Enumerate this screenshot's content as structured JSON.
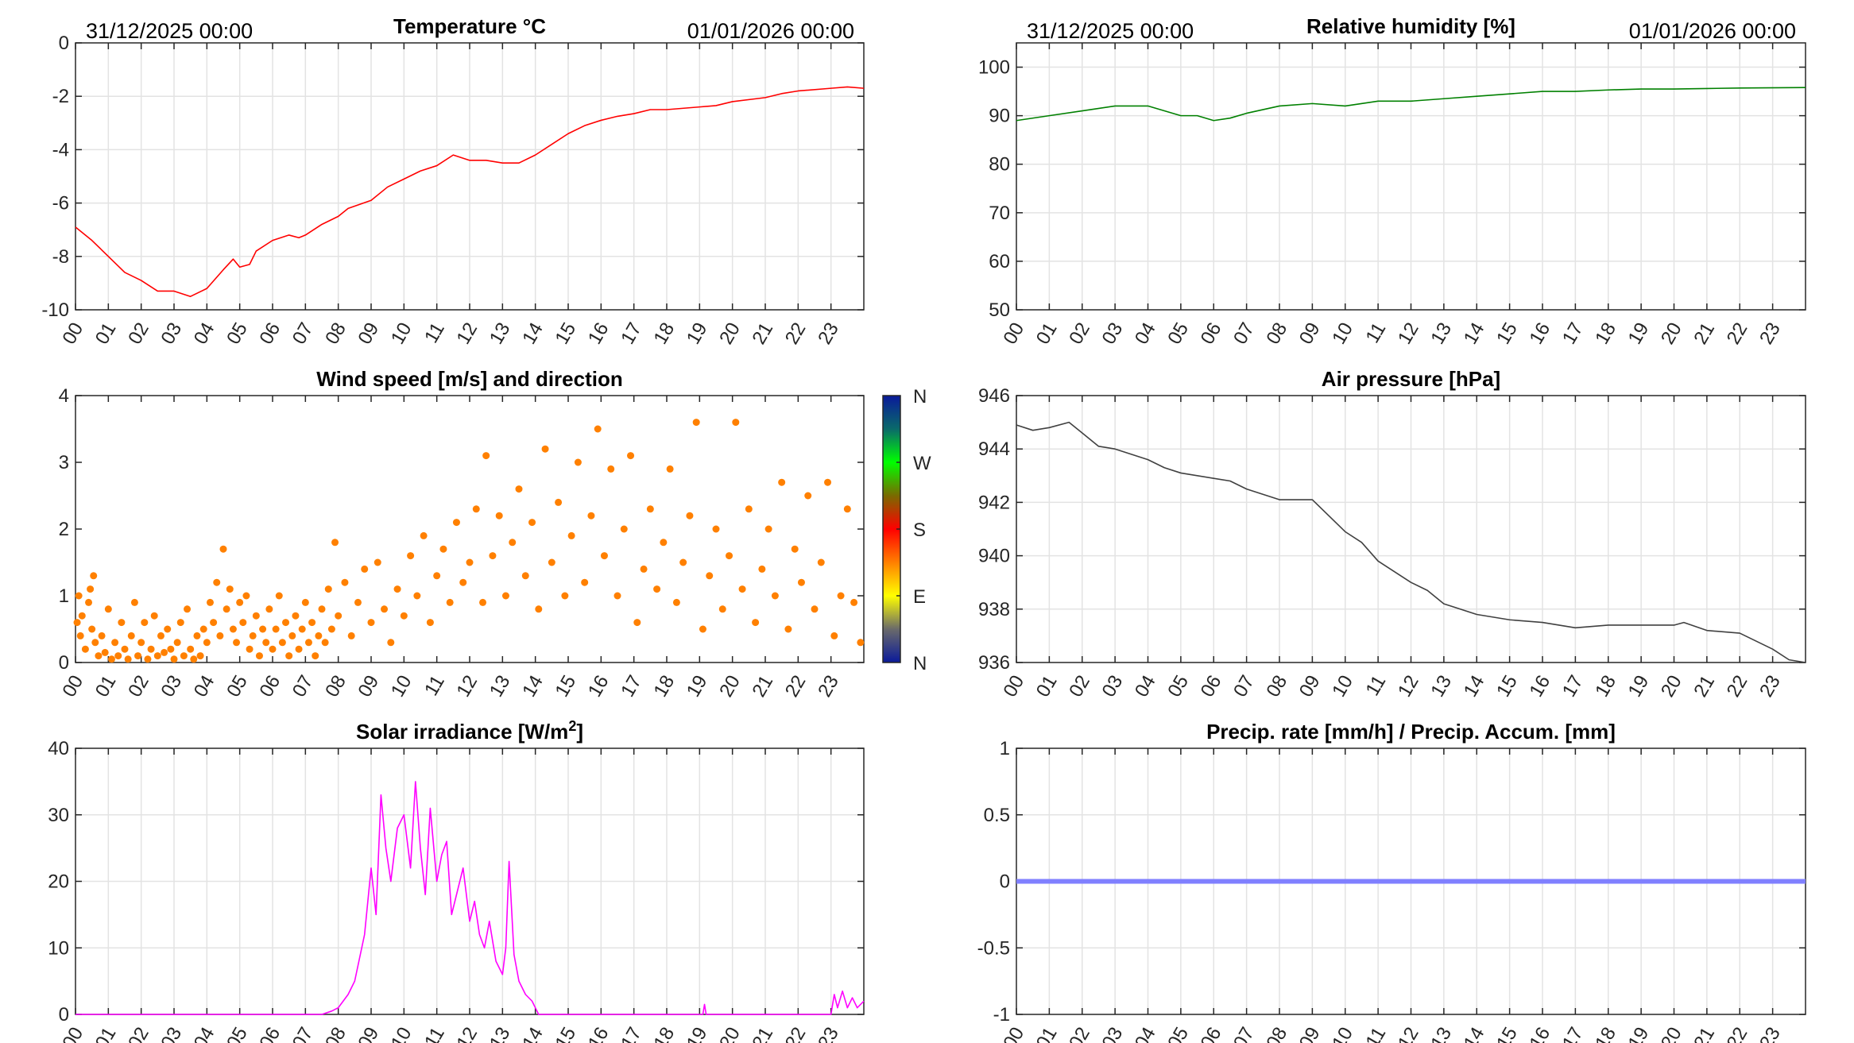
{
  "header": {
    "start_label": "31/12/2025 00:00",
    "end_label": "01/01/2026 00:00"
  },
  "hour_labels": [
    "00",
    "01",
    "02",
    "03",
    "04",
    "05",
    "06",
    "07",
    "08",
    "09",
    "10",
    "11",
    "12",
    "13",
    "14",
    "15",
    "16",
    "17",
    "18",
    "19",
    "20",
    "21",
    "22",
    "23"
  ],
  "colorbar": {
    "labels": [
      "N",
      "W",
      "S",
      "E",
      "N"
    ],
    "colors": [
      "#0a1a9a",
      "#0a6a6a",
      "#00ff00",
      "#7a6a00",
      "#ff0000",
      "#ff8000",
      "#ffff00",
      "#6a6a6a",
      "#0a1a9a"
    ]
  },
  "chart_data": [
    {
      "id": "temp",
      "type": "line",
      "title": "Temperature °C",
      "xlabel": "",
      "ylabel": "",
      "xlim": [
        0,
        24
      ],
      "ylim": [
        -10,
        0
      ],
      "yticks": [
        0,
        -2,
        -4,
        -6,
        -8,
        -10
      ],
      "grid": true,
      "color": "#ff0000",
      "x": [
        0,
        0.5,
        1,
        1.5,
        2,
        2.5,
        3,
        3.5,
        4,
        4.5,
        4.8,
        5,
        5.3,
        5.5,
        6,
        6.5,
        6.8,
        7,
        7.5,
        8,
        8.3,
        9,
        9.5,
        10,
        10.5,
        11,
        11.5,
        12,
        12.5,
        13,
        13.5,
        14,
        14.5,
        15,
        15.5,
        16,
        16.5,
        17,
        17.5,
        18,
        19,
        19.5,
        20,
        21,
        21.5,
        22,
        23,
        23.5,
        24
      ],
      "y": [
        -6.9,
        -7.4,
        -8.0,
        -8.6,
        -8.9,
        -9.3,
        -9.3,
        -9.5,
        -9.2,
        -8.5,
        -8.1,
        -8.4,
        -8.3,
        -7.8,
        -7.4,
        -7.2,
        -7.3,
        -7.2,
        -6.8,
        -6.5,
        -6.2,
        -5.9,
        -5.4,
        -5.1,
        -4.8,
        -4.6,
        -4.2,
        -4.4,
        -4.4,
        -4.5,
        -4.5,
        -4.2,
        -3.8,
        -3.4,
        -3.1,
        -2.9,
        -2.75,
        -2.65,
        -2.5,
        -2.5,
        -2.4,
        -2.35,
        -2.2,
        -2.05,
        -1.9,
        -1.8,
        -1.7,
        -1.65,
        -1.7
      ]
    },
    {
      "id": "hum",
      "type": "line",
      "title": "Relative humidity [%]",
      "xlabel": "",
      "ylabel": "",
      "xlim": [
        0,
        24
      ],
      "ylim": [
        50,
        105
      ],
      "yticks": [
        100,
        90,
        80,
        70,
        60,
        50
      ],
      "grid": true,
      "color": "#008000",
      "x": [
        0,
        1,
        2,
        3,
        4,
        4.5,
        5,
        5.5,
        6,
        6.5,
        7,
        8,
        9,
        10,
        11,
        12,
        13,
        14,
        15,
        16,
        17,
        18,
        19,
        20,
        21,
        22,
        24
      ],
      "y": [
        89,
        90,
        91,
        92,
        92,
        91,
        90,
        90,
        89,
        89.5,
        90.5,
        92,
        92.5,
        92,
        93,
        93,
        93.5,
        94,
        94.5,
        95,
        95,
        95.3,
        95.5,
        95.5,
        95.6,
        95.7,
        95.8
      ]
    },
    {
      "id": "wind",
      "type": "scatter",
      "title": "Wind speed [m/s] and direction",
      "xlabel": "",
      "ylabel": "",
      "xlim": [
        0,
        24
      ],
      "ylim": [
        0,
        4
      ],
      "yticks": [
        4,
        3,
        2,
        1,
        0
      ],
      "grid": false,
      "color": "#ff8000",
      "points": [
        [
          0.05,
          0.6
        ],
        [
          0.1,
          1.0
        ],
        [
          0.15,
          0.4
        ],
        [
          0.2,
          0.7
        ],
        [
          0.3,
          0.2
        ],
        [
          0.4,
          0.9
        ],
        [
          0.45,
          1.1
        ],
        [
          0.5,
          0.5
        ],
        [
          0.55,
          1.3
        ],
        [
          0.6,
          0.3
        ],
        [
          0.7,
          0.1
        ],
        [
          0.8,
          0.4
        ],
        [
          0.9,
          0.15
        ],
        [
          1.0,
          0.8
        ],
        [
          1.1,
          0.05
        ],
        [
          1.2,
          0.3
        ],
        [
          1.3,
          0.1
        ],
        [
          1.4,
          0.6
        ],
        [
          1.5,
          0.2
        ],
        [
          1.6,
          0.05
        ],
        [
          1.7,
          0.4
        ],
        [
          1.8,
          0.9
        ],
        [
          1.9,
          0.1
        ],
        [
          2.0,
          0.3
        ],
        [
          2.1,
          0.6
        ],
        [
          2.2,
          0.05
        ],
        [
          2.3,
          0.2
        ],
        [
          2.4,
          0.7
        ],
        [
          2.5,
          0.1
        ],
        [
          2.6,
          0.4
        ],
        [
          2.7,
          0.15
        ],
        [
          2.8,
          0.5
        ],
        [
          2.9,
          0.2
        ],
        [
          3.0,
          0.05
        ],
        [
          3.1,
          0.3
        ],
        [
          3.2,
          0.6
        ],
        [
          3.3,
          0.1
        ],
        [
          3.4,
          0.8
        ],
        [
          3.5,
          0.2
        ],
        [
          3.6,
          0.05
        ],
        [
          3.7,
          0.4
        ],
        [
          3.8,
          0.1
        ],
        [
          3.9,
          0.5
        ],
        [
          4.0,
          0.3
        ],
        [
          4.1,
          0.9
        ],
        [
          4.2,
          0.6
        ],
        [
          4.3,
          1.2
        ],
        [
          4.4,
          0.4
        ],
        [
          4.5,
          1.7
        ],
        [
          4.6,
          0.8
        ],
        [
          4.7,
          1.1
        ],
        [
          4.8,
          0.5
        ],
        [
          4.9,
          0.3
        ],
        [
          5.0,
          0.9
        ],
        [
          5.1,
          0.6
        ],
        [
          5.2,
          1.0
        ],
        [
          5.3,
          0.2
        ],
        [
          5.4,
          0.4
        ],
        [
          5.5,
          0.7
        ],
        [
          5.6,
          0.1
        ],
        [
          5.7,
          0.5
        ],
        [
          5.8,
          0.3
        ],
        [
          5.9,
          0.8
        ],
        [
          6.0,
          0.2
        ],
        [
          6.1,
          0.5
        ],
        [
          6.2,
          1.0
        ],
        [
          6.3,
          0.3
        ],
        [
          6.4,
          0.6
        ],
        [
          6.5,
          0.1
        ],
        [
          6.6,
          0.4
        ],
        [
          6.7,
          0.7
        ],
        [
          6.8,
          0.2
        ],
        [
          6.9,
          0.5
        ],
        [
          7.0,
          0.9
        ],
        [
          7.1,
          0.3
        ],
        [
          7.2,
          0.6
        ],
        [
          7.3,
          0.1
        ],
        [
          7.4,
          0.4
        ],
        [
          7.5,
          0.8
        ],
        [
          7.6,
          0.3
        ],
        [
          7.7,
          1.1
        ],
        [
          7.8,
          0.5
        ],
        [
          7.9,
          1.8
        ],
        [
          8.0,
          0.7
        ],
        [
          8.2,
          1.2
        ],
        [
          8.4,
          0.4
        ],
        [
          8.6,
          0.9
        ],
        [
          8.8,
          1.4
        ],
        [
          9.0,
          0.6
        ],
        [
          9.2,
          1.5
        ],
        [
          9.4,
          0.8
        ],
        [
          9.6,
          0.3
        ],
        [
          9.8,
          1.1
        ],
        [
          10.0,
          0.7
        ],
        [
          10.2,
          1.6
        ],
        [
          10.4,
          1.0
        ],
        [
          10.6,
          1.9
        ],
        [
          10.8,
          0.6
        ],
        [
          11.0,
          1.3
        ],
        [
          11.2,
          1.7
        ],
        [
          11.4,
          0.9
        ],
        [
          11.6,
          2.1
        ],
        [
          11.8,
          1.2
        ],
        [
          12.0,
          1.5
        ],
        [
          12.2,
          2.3
        ],
        [
          12.4,
          0.9
        ],
        [
          12.5,
          3.1
        ],
        [
          12.7,
          1.6
        ],
        [
          12.9,
          2.2
        ],
        [
          13.1,
          1.0
        ],
        [
          13.3,
          1.8
        ],
        [
          13.5,
          2.6
        ],
        [
          13.7,
          1.3
        ],
        [
          13.9,
          2.1
        ],
        [
          14.1,
          0.8
        ],
        [
          14.3,
          3.2
        ],
        [
          14.5,
          1.5
        ],
        [
          14.7,
          2.4
        ],
        [
          14.9,
          1.0
        ],
        [
          15.1,
          1.9
        ],
        [
          15.3,
          3.0
        ],
        [
          15.5,
          1.2
        ],
        [
          15.7,
          2.2
        ],
        [
          15.9,
          3.5
        ],
        [
          16.1,
          1.6
        ],
        [
          16.3,
          2.9
        ],
        [
          16.5,
          1.0
        ],
        [
          16.7,
          2.0
        ],
        [
          16.9,
          3.1
        ],
        [
          17.1,
          0.6
        ],
        [
          17.3,
          1.4
        ],
        [
          17.5,
          2.3
        ],
        [
          17.7,
          1.1
        ],
        [
          17.9,
          1.8
        ],
        [
          18.1,
          2.9
        ],
        [
          18.3,
          0.9
        ],
        [
          18.5,
          1.5
        ],
        [
          18.7,
          2.2
        ],
        [
          18.9,
          3.6
        ],
        [
          19.1,
          0.5
        ],
        [
          19.3,
          1.3
        ],
        [
          19.5,
          2.0
        ],
        [
          19.7,
          0.8
        ],
        [
          19.9,
          1.6
        ],
        [
          20.1,
          3.6
        ],
        [
          20.3,
          1.1
        ],
        [
          20.5,
          2.3
        ],
        [
          20.7,
          0.6
        ],
        [
          20.9,
          1.4
        ],
        [
          21.1,
          2.0
        ],
        [
          21.3,
          1.0
        ],
        [
          21.5,
          2.7
        ],
        [
          21.7,
          0.5
        ],
        [
          21.9,
          1.7
        ],
        [
          22.1,
          1.2
        ],
        [
          22.3,
          2.5
        ],
        [
          22.5,
          0.8
        ],
        [
          22.7,
          1.5
        ],
        [
          22.9,
          2.7
        ],
        [
          23.1,
          0.4
        ],
        [
          23.3,
          1.0
        ],
        [
          23.5,
          2.3
        ],
        [
          23.7,
          0.9
        ],
        [
          23.9,
          0.3
        ]
      ]
    },
    {
      "id": "press",
      "type": "line",
      "title": "Air pressure [hPa]",
      "xlabel": "",
      "ylabel": "",
      "xlim": [
        0,
        24
      ],
      "ylim": [
        936,
        946
      ],
      "yticks": [
        946,
        944,
        942,
        940,
        938,
        936
      ],
      "grid": true,
      "color": "#404040",
      "x": [
        0,
        0.5,
        1,
        1.6,
        2,
        2.5,
        3,
        4,
        4.5,
        5,
        6,
        6.5,
        7,
        8,
        9,
        9.5,
        10,
        10.5,
        11,
        12,
        12.5,
        13,
        14,
        15,
        16,
        17,
        18,
        19,
        20,
        20.3,
        21,
        22,
        23,
        23.5,
        24
      ],
      "y": [
        944.9,
        944.7,
        944.8,
        945.0,
        944.6,
        944.1,
        944.0,
        943.6,
        943.3,
        943.1,
        942.9,
        942.8,
        942.5,
        942.1,
        942.1,
        941.5,
        940.9,
        940.5,
        939.8,
        939.0,
        938.7,
        938.2,
        937.8,
        937.6,
        937.5,
        937.3,
        937.4,
        937.4,
        937.4,
        937.5,
        937.2,
        937.1,
        936.5,
        936.1,
        936.0
      ]
    },
    {
      "id": "solar",
      "type": "line",
      "title": "Solar irradiance [W/m2]",
      "title_parts": {
        "prefix": "Solar irradiance [W/m",
        "sup": "2",
        "suffix": "]"
      },
      "xlabel": "",
      "ylabel": "",
      "xlim": [
        0,
        24
      ],
      "ylim": [
        0,
        40
      ],
      "yticks": [
        40,
        30,
        20,
        10,
        0
      ],
      "grid": true,
      "color": "#ff00ff",
      "x": [
        0,
        7.5,
        7.8,
        8,
        8.3,
        8.5,
        8.8,
        9,
        9.15,
        9.3,
        9.45,
        9.6,
        9.8,
        10,
        10.2,
        10.35,
        10.5,
        10.65,
        10.8,
        11,
        11.15,
        11.3,
        11.45,
        11.6,
        11.8,
        12,
        12.15,
        12.3,
        12.45,
        12.6,
        12.8,
        13,
        13.1,
        13.2,
        13.35,
        13.5,
        13.7,
        13.9,
        14.1,
        19.1,
        19.15,
        19.2,
        23,
        23.1,
        23.2,
        23.35,
        23.5,
        23.65,
        23.8,
        24
      ],
      "y": [
        0,
        0,
        0.5,
        1,
        3,
        5,
        12,
        22,
        15,
        33,
        25,
        20,
        28,
        30,
        22,
        35,
        25,
        18,
        31,
        20,
        24,
        26,
        15,
        18,
        22,
        14,
        17,
        12,
        10,
        14,
        8,
        6,
        10,
        23,
        9,
        5,
        3,
        2,
        0,
        0,
        1.5,
        0,
        0,
        3,
        1,
        3.5,
        1,
        2.5,
        1,
        2
      ]
    },
    {
      "id": "precip",
      "type": "line",
      "title": "Precip. rate [mm/h] / Precip. Accum. [mm]",
      "xlabel": "",
      "ylabel": "",
      "xlim": [
        0,
        24
      ],
      "ylim": [
        -1,
        1
      ],
      "yticks": [
        1,
        0.5,
        0,
        -0.5,
        -1
      ],
      "grid": true,
      "color": "#8080ff",
      "x": [
        0,
        24
      ],
      "y": [
        0,
        0
      ]
    }
  ]
}
